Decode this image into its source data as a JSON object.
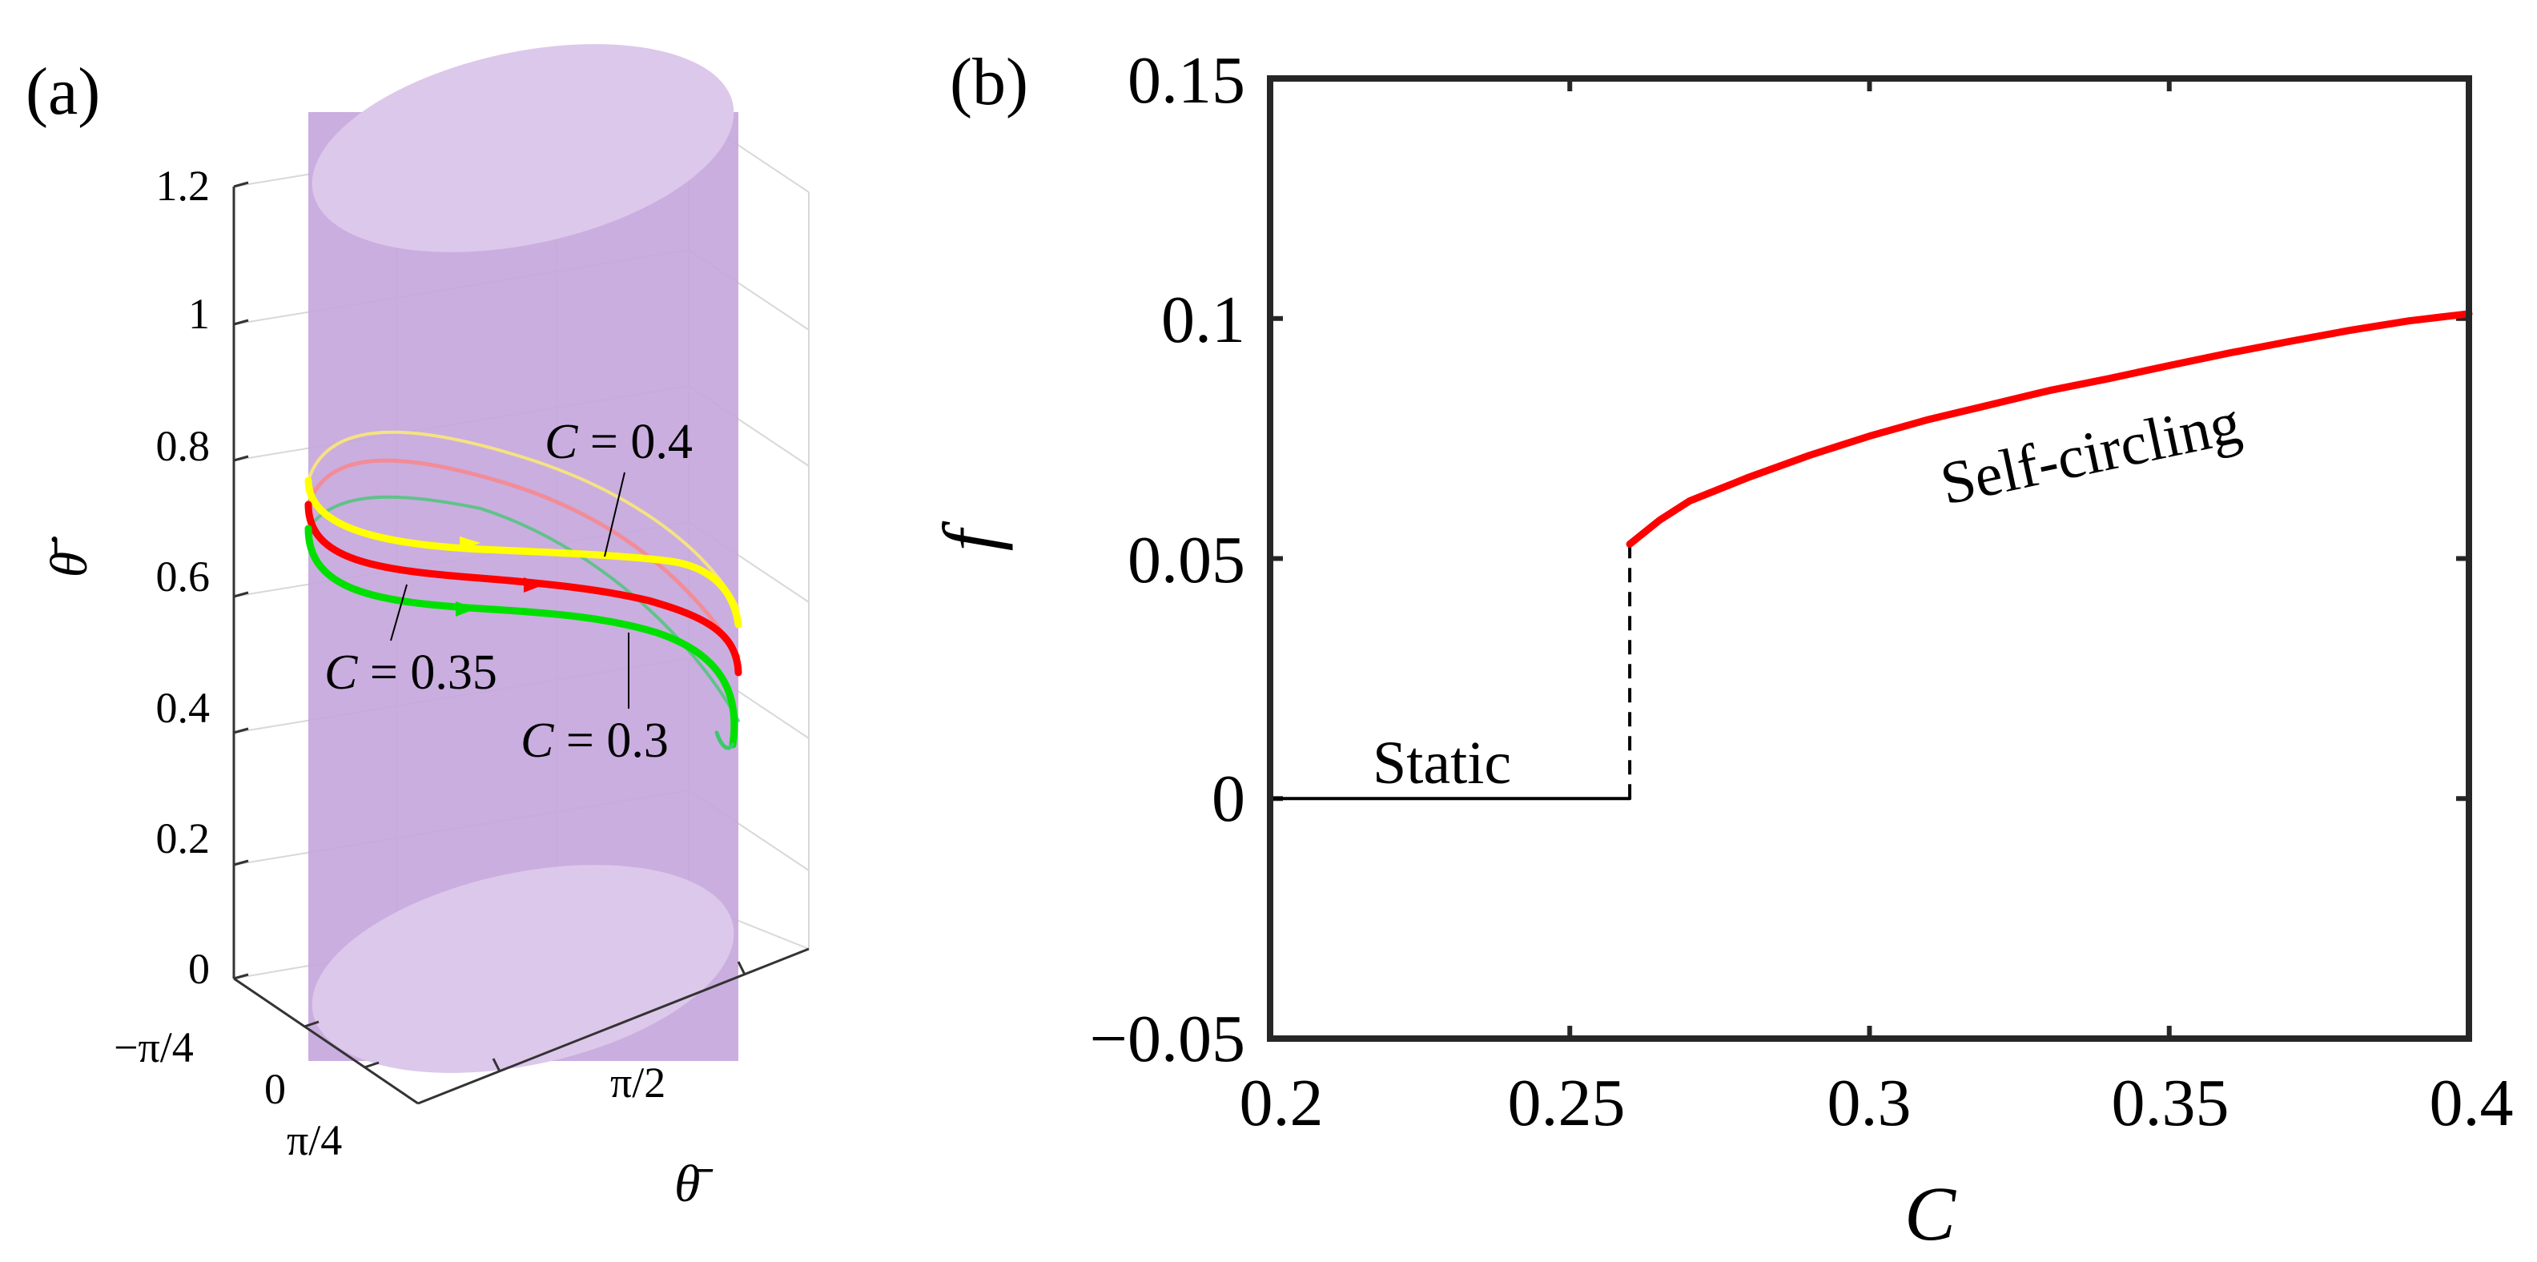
{
  "panel_a": {
    "label": "(a)",
    "z_ticks": [
      "1.2",
      "1",
      "0.8",
      "0.6",
      "0.4",
      "0.2",
      "0"
    ],
    "z_axis_label": "θ̄̇",
    "theta_ticks": [
      "−π/4",
      "0",
      "π/4",
      "π/2"
    ],
    "theta_axis_label": "θ̄",
    "cylinder_color": "#b99ad3",
    "curves": [
      {
        "name": "C = 0.4",
        "color": "#ffff00",
        "label_c": "C",
        "label_eq": " = 0.4"
      },
      {
        "name": "C = 0.35",
        "color": "#ff0000",
        "label_c": "C",
        "label_eq": " = 0.35"
      },
      {
        "name": "C = 0.3",
        "color": "#00e000",
        "label_c": "C",
        "label_eq": " = 0.3"
      }
    ]
  },
  "panel_b": {
    "label": "(b)",
    "static_label": "Static",
    "circling_label": "Self-circling",
    "xlabel": "C",
    "ylabel": "f",
    "x_tick_labels": [
      "0.2",
      "0.25",
      "0.3",
      "0.35",
      "0.4"
    ],
    "y_tick_labels": [
      "0.15",
      "0.1",
      "0.05",
      "0",
      "−0.05"
    ]
  },
  "chart_data": [
    {
      "type": "line",
      "title": "(b)",
      "xlabel": "C",
      "ylabel": "f",
      "xlim": [
        0.2,
        0.4
      ],
      "ylim": [
        -0.05,
        0.15
      ],
      "x_ticks": [
        0.2,
        0.25,
        0.3,
        0.35,
        0.4
      ],
      "y_ticks": [
        -0.05,
        0,
        0.05,
        0.1,
        0.15
      ],
      "series": [
        {
          "name": "Static",
          "color": "#000000",
          "style": "solid",
          "x": [
            0.2,
            0.26
          ],
          "y": [
            0,
            0
          ]
        },
        {
          "name": "Transition",
          "color": "#000000",
          "style": "dashed",
          "x": [
            0.26,
            0.26
          ],
          "y": [
            0,
            0.053
          ]
        },
        {
          "name": "Self-circling",
          "color": "#ff0000",
          "style": "solid",
          "x": [
            0.26,
            0.265,
            0.27,
            0.28,
            0.29,
            0.3,
            0.31,
            0.32,
            0.33,
            0.34,
            0.35,
            0.36,
            0.37,
            0.38,
            0.39,
            0.4
          ],
          "y": [
            0.053,
            0.058,
            0.062,
            0.067,
            0.0715,
            0.0755,
            0.079,
            0.082,
            0.085,
            0.0875,
            0.0902,
            0.0928,
            0.0952,
            0.0975,
            0.0995,
            0.101
          ]
        }
      ]
    },
    {
      "type": "line",
      "title": "(a)",
      "xlabel": "θ̄",
      "ylabel": "θ̄̇",
      "zlim": [
        0,
        1.2
      ],
      "series": [
        {
          "name": "C = 0.4",
          "color": "#ffff00",
          "theta_dot_range": [
            0.55,
            0.82
          ]
        },
        {
          "name": "C = 0.35",
          "color": "#ff0000",
          "theta_dot_range": [
            0.46,
            0.77
          ]
        },
        {
          "name": "C = 0.3",
          "color": "#00e000",
          "theta_dot_range": [
            0.36,
            0.73
          ]
        }
      ]
    }
  ]
}
